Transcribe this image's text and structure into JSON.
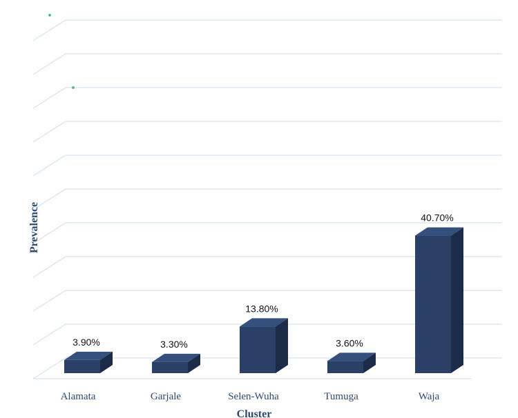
{
  "chart_data": {
    "type": "bar",
    "style": "3d-column",
    "categories": [
      "Alamata",
      "Garjale",
      "Selen-Wuha",
      "Tumuga",
      "Waja"
    ],
    "values": [
      3.9,
      3.3,
      13.8,
      3.6,
      40.7
    ],
    "value_labels": [
      "3.90%",
      "3.30%",
      "13.80%",
      "3.60%",
      "40.70%"
    ],
    "xlabel": "Cluster",
    "ylabel": "Prevalence",
    "ylim": [
      0,
      100
    ],
    "grid": true,
    "bar_color": "#2a4066",
    "bar_side_color": "#1c2c48",
    "bar_top_color": "#36507e",
    "grid_color": "#c9dcee",
    "axis_text_color": "#2d4a73"
  }
}
